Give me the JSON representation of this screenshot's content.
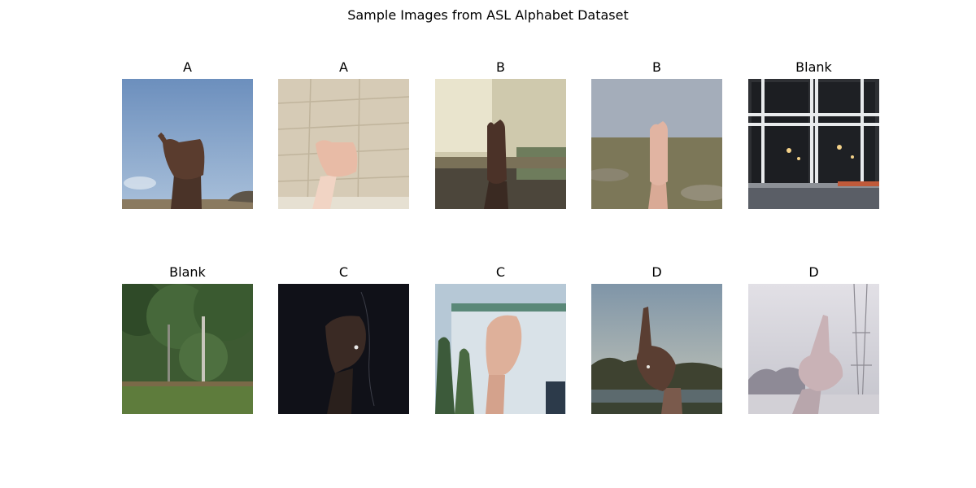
{
  "figure": {
    "title": "Sample Images from ASL Alphabet Dataset"
  },
  "panels": [
    {
      "label": "A",
      "scene": "hand-a-sky"
    },
    {
      "label": "A",
      "scene": "hand-a-wall"
    },
    {
      "label": "B",
      "scene": "hand-b-workshop"
    },
    {
      "label": "B",
      "scene": "hand-b-field"
    },
    {
      "label": "Blank",
      "scene": "window-night"
    },
    {
      "label": "Blank",
      "scene": "trees-grass"
    },
    {
      "label": "C",
      "scene": "hand-c-dark"
    },
    {
      "label": "C",
      "scene": "hand-c-building"
    },
    {
      "label": "D",
      "scene": "hand-d-landscape"
    },
    {
      "label": "D",
      "scene": "hand-d-haze"
    }
  ]
}
